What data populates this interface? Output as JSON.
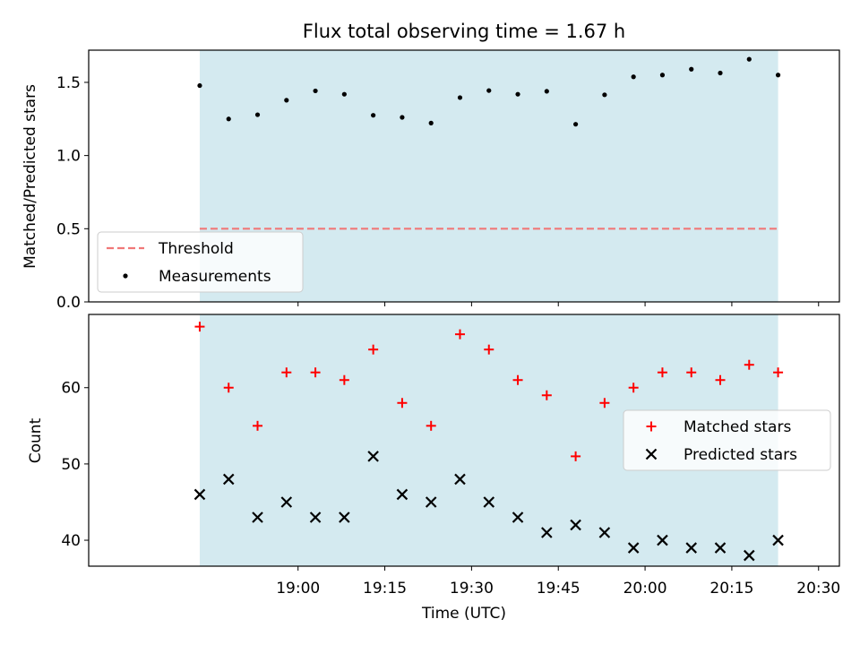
{
  "chart_data": [
    {
      "type": "scatter",
      "title": "Flux total observing time = 1.67 h",
      "xlabel": "",
      "ylabel": "Matched/Predicted stars",
      "x": [
        "18:43",
        "18:48",
        "18:53",
        "18:58",
        "19:03",
        "19:08",
        "19:13",
        "19:18",
        "19:23",
        "19:28",
        "19:33",
        "19:38",
        "19:43",
        "19:48",
        "19:53",
        "19:58",
        "20:03",
        "20:08",
        "20:13",
        "20:18",
        "20:23"
      ],
      "ylim": [
        0,
        1.72
      ],
      "yticks": [
        "0.0",
        "0.5",
        "1.0",
        "1.5"
      ],
      "series": [
        {
          "name": "Measurements",
          "values": [
            1.478,
            1.25,
            1.279,
            1.378,
            1.442,
            1.419,
            1.275,
            1.261,
            1.222,
            1.396,
            1.444,
            1.419,
            1.439,
            1.214,
            1.415,
            1.538,
            1.55,
            1.59,
            1.564,
            1.658,
            1.55
          ],
          "color": "#000000",
          "marker": "dot"
        },
        {
          "name": "Threshold",
          "values": [
            0.5
          ],
          "color": "#f07878",
          "style": "dashed-line"
        }
      ],
      "background_span_color": "#d4eaf0",
      "legend_position": "lower-left"
    },
    {
      "type": "scatter",
      "xlabel": "Time (UTC)",
      "ylabel": "Count",
      "x": [
        "18:43",
        "18:48",
        "18:53",
        "18:58",
        "19:03",
        "19:08",
        "19:13",
        "19:18",
        "19:23",
        "19:28",
        "19:33",
        "19:38",
        "19:43",
        "19:48",
        "19:53",
        "19:58",
        "20:03",
        "20:08",
        "20:13",
        "20:18",
        "20:23"
      ],
      "xticks": [
        "19:00",
        "19:15",
        "19:30",
        "19:45",
        "20:00",
        "20:15",
        "20:30"
      ],
      "xtick_minutes": [
        1140,
        1155,
        1170,
        1185,
        1200,
        1215,
        1230
      ],
      "xrange_minutes": [
        1103.8,
        1233.6
      ],
      "ylim": [
        36.6,
        69.6
      ],
      "yticks": [
        "40",
        "50",
        "60"
      ],
      "series": [
        {
          "name": "Matched stars",
          "values": [
            68,
            60,
            55,
            62,
            62,
            61,
            65,
            58,
            55,
            67,
            65,
            61,
            59,
            51,
            58,
            60,
            62,
            62,
            61,
            63,
            62
          ],
          "color": "#ff0000",
          "marker": "plus"
        },
        {
          "name": "Predicted stars",
          "values": [
            46,
            48,
            43,
            45,
            43,
            43,
            51,
            46,
            45,
            48,
            45,
            43,
            41,
            42,
            41,
            39,
            40,
            39,
            39,
            38,
            40
          ],
          "color": "#000000",
          "marker": "x"
        }
      ],
      "background_span_color": "#d4eaf0",
      "legend_position": "center-right"
    }
  ]
}
